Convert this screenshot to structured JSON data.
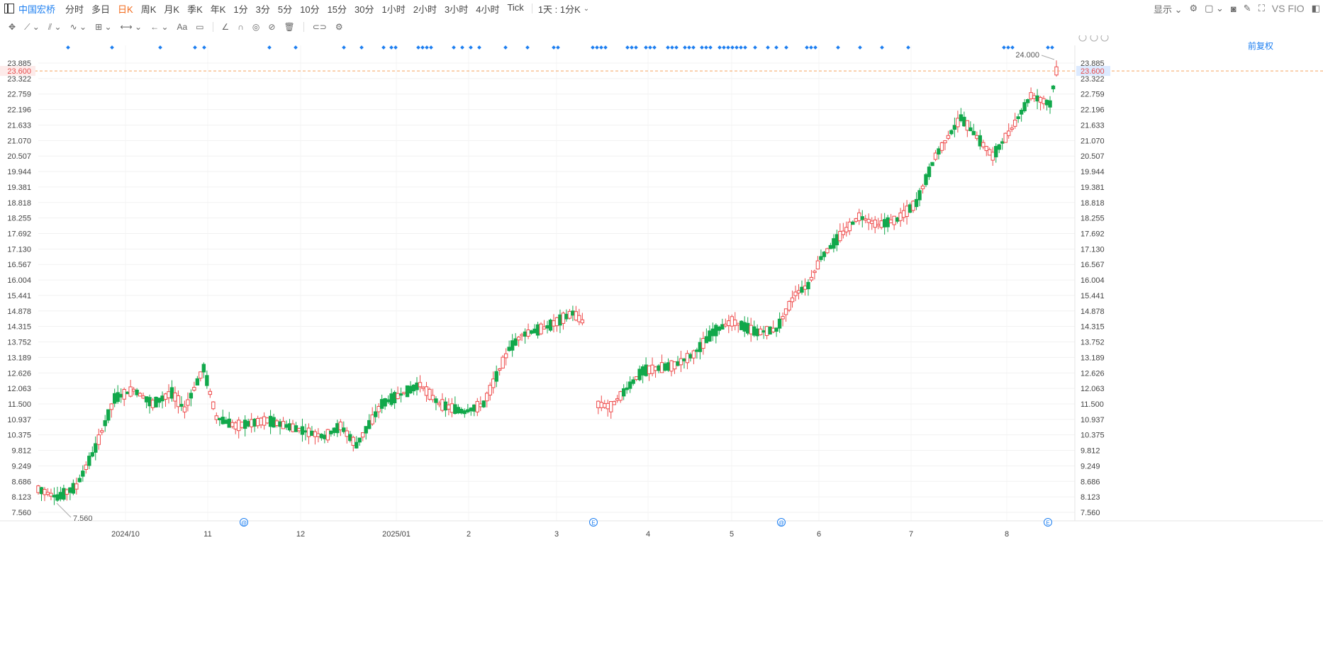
{
  "header": {
    "stock_name": "中国宏桥",
    "periods": [
      "分时",
      "多日",
      "日K",
      "周K",
      "月K",
      "季K",
      "年K",
      "1分",
      "3分",
      "5分",
      "10分",
      "15分",
      "30分",
      "1小时",
      "2小时",
      "3小时",
      "4小时",
      "Tick"
    ],
    "active_period": "日K",
    "kline_setting": "1天 : 1分K",
    "display_label": "显示",
    "vs_label": "VS FIO",
    "adjust_label": "前复权"
  },
  "chart_data": {
    "type": "candlestick",
    "y_ticks": [
      "7.560",
      "8.123",
      "8.686",
      "9.249",
      "9.812",
      "10.375",
      "10.937",
      "11.500",
      "12.063",
      "12.626",
      "13.189",
      "13.752",
      "14.315",
      "14.878",
      "15.441",
      "16.004",
      "16.567",
      "17.130",
      "17.692",
      "18.255",
      "18.818",
      "19.381",
      "19.944",
      "20.507",
      "21.070",
      "21.633",
      "22.196",
      "22.759",
      "23.322",
      "23.885"
    ],
    "ylim": [
      7.0,
      24.3
    ],
    "x_labels": [
      "2024/10",
      "11",
      "12",
      "2025/01",
      "2",
      "3",
      "4",
      "5",
      "6",
      "7",
      "8"
    ],
    "current_price": "23.600",
    "max_label": "24.000",
    "min_label": "7.560",
    "event_markers": [
      "@",
      "E",
      "@",
      "E"
    ],
    "colors": {
      "up": "#ee4a4a",
      "down": "#11a84b",
      "price_line": "#f5a25d",
      "marker": "#1e7ff0"
    }
  }
}
